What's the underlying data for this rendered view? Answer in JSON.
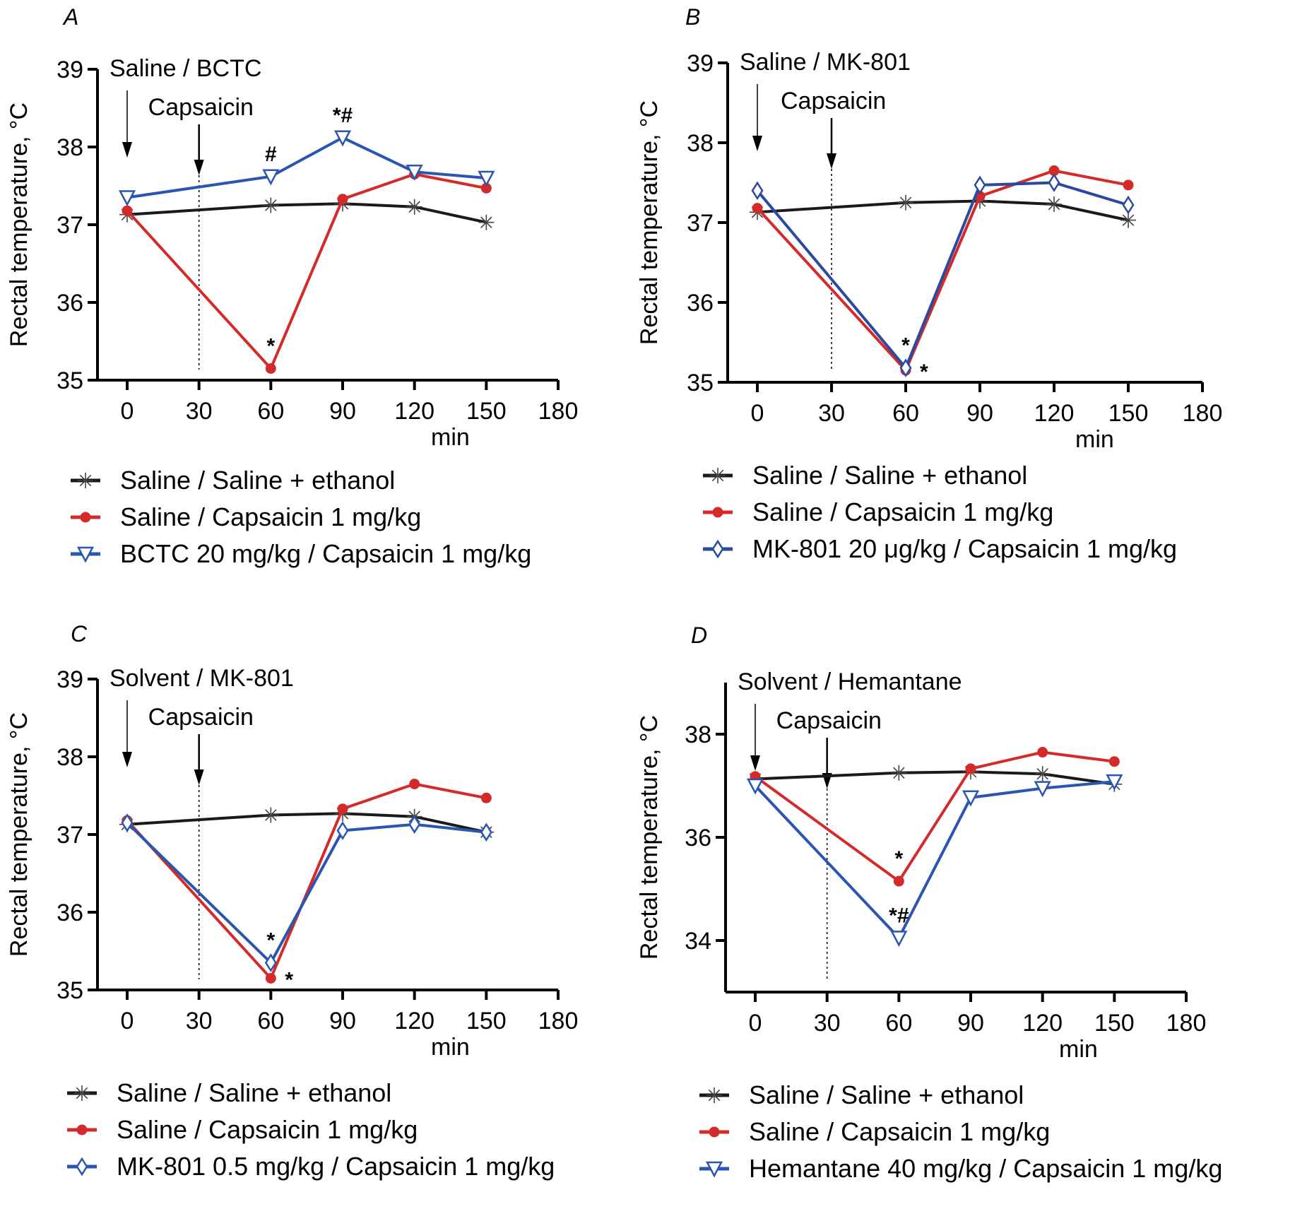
{
  "chart_data": [
    {
      "type": "line",
      "panel": "A",
      "x": [
        0,
        60,
        90,
        120,
        150
      ],
      "xticks": [
        "0",
        "30",
        "60",
        "90",
        "120",
        "150",
        "180"
      ],
      "xlim": [
        0,
        180
      ],
      "yticks": [
        "35",
        "36",
        "37",
        "38",
        "39"
      ],
      "ylim": [
        35,
        39
      ],
      "xlabel": "min",
      "ylabel": "Rectal temperature, °C",
      "annotations": {
        "first": "Saline / BCTC",
        "second": "Capsaicin"
      },
      "series": [
        {
          "name": "Saline / Saline + ethanol",
          "color": "#1a1a1a",
          "marker": "asterisk",
          "values": [
            37.13,
            37.25,
            37.27,
            37.23,
            37.03
          ]
        },
        {
          "name": "Saline / Capsaicin 1 mg/kg",
          "color": "#d42a2a",
          "marker": "circle",
          "values": [
            37.18,
            35.15,
            37.33,
            37.65,
            37.47
          ]
        },
        {
          "name": "BCTC 20 mg/kg / Capsaicin 1 mg/kg",
          "color": "#2a55b0",
          "marker": "triangle-down",
          "values": [
            37.35,
            37.62,
            38.12,
            37.68,
            37.6
          ]
        }
      ],
      "significance": [
        {
          "x": 60,
          "series": 1,
          "label": "*",
          "pos": "above"
        },
        {
          "x": 60,
          "series": 2,
          "label": "#",
          "pos": "above"
        },
        {
          "x": 90,
          "series": 2,
          "label": "*#",
          "pos": "above"
        }
      ]
    },
    {
      "type": "line",
      "panel": "B",
      "x": [
        0,
        60,
        90,
        120,
        150
      ],
      "xticks": [
        "0",
        "30",
        "60",
        "90",
        "120",
        "150",
        "180"
      ],
      "xlim": [
        0,
        180
      ],
      "yticks": [
        "35",
        "36",
        "37",
        "38",
        "39"
      ],
      "ylim": [
        35,
        39
      ],
      "xlabel": "min",
      "ylabel": "Rectal temperature, °C",
      "annotations": {
        "first": "Saline / MK-801",
        "second": "Capsaicin"
      },
      "series": [
        {
          "name": "Saline / Saline + ethanol",
          "color": "#1a1a1a",
          "marker": "asterisk",
          "values": [
            37.13,
            37.25,
            37.27,
            37.23,
            37.03
          ]
        },
        {
          "name": "Saline / Capsaicin 1 mg/kg",
          "color": "#d42a2a",
          "marker": "circle",
          "values": [
            37.18,
            35.15,
            37.33,
            37.65,
            37.47
          ]
        },
        {
          "name": "MK-801 20 μg/kg / Capsaicin 1 mg/kg",
          "color": "#2a4aa0",
          "marker": "diamond",
          "values": [
            37.4,
            35.18,
            37.47,
            37.5,
            37.22
          ]
        }
      ],
      "significance": [
        {
          "x": 60,
          "series": 2,
          "label": "*",
          "pos": "above"
        },
        {
          "x": 60,
          "series": 1,
          "label": "*",
          "pos": "right"
        }
      ]
    },
    {
      "type": "line",
      "panel": "C",
      "x": [
        0,
        60,
        90,
        120,
        150
      ],
      "xticks": [
        "0",
        "30",
        "60",
        "90",
        "120",
        "150",
        "180"
      ],
      "xlim": [
        0,
        180
      ],
      "yticks": [
        "35",
        "36",
        "37",
        "38",
        "39"
      ],
      "ylim": [
        35,
        39
      ],
      "xlabel": "min",
      "ylabel": "Rectal temperature, °C",
      "annotations": {
        "first": "Solvent / MK-801",
        "second": "Capsaicin"
      },
      "series": [
        {
          "name": "Saline / Saline + ethanol",
          "color": "#1a1a1a",
          "marker": "asterisk",
          "values": [
            37.13,
            37.25,
            37.27,
            37.23,
            37.03
          ]
        },
        {
          "name": "Saline / Capsaicin 1 mg/kg",
          "color": "#d42a2a",
          "marker": "circle",
          "values": [
            37.18,
            35.15,
            37.33,
            37.65,
            37.47
          ]
        },
        {
          "name": "MK-801 0.5 mg/kg / Capsaicin 1 mg/kg",
          "color": "#2a55b0",
          "marker": "diamond",
          "values": [
            37.15,
            35.35,
            37.05,
            37.13,
            37.03
          ]
        }
      ],
      "significance": [
        {
          "x": 60,
          "series": 2,
          "label": "*",
          "pos": "above"
        },
        {
          "x": 60,
          "series": 1,
          "label": "*",
          "pos": "right"
        }
      ]
    },
    {
      "type": "line",
      "panel": "D",
      "x": [
        0,
        60,
        90,
        120,
        150
      ],
      "xticks": [
        "0",
        "30",
        "60",
        "90",
        "120",
        "150",
        "180"
      ],
      "xlim": [
        0,
        180
      ],
      "yticks": [
        "34",
        "36",
        "38"
      ],
      "ylim": [
        33,
        39
      ],
      "xlabel": "min",
      "ylabel": "Rectal temperature, °C",
      "annotations": {
        "first": "Solvent / Hemantane",
        "second": "Capsaicin"
      },
      "series": [
        {
          "name": "Saline / Saline + ethanol",
          "color": "#1a1a1a",
          "marker": "asterisk",
          "values": [
            37.13,
            37.25,
            37.27,
            37.23,
            37.03
          ]
        },
        {
          "name": "Saline / Capsaicin 1 mg/kg",
          "color": "#d42a2a",
          "marker": "circle",
          "values": [
            37.18,
            35.15,
            37.33,
            37.65,
            37.47
          ]
        },
        {
          "name": "Hemantane 40 mg/kg / Capsaicin 1 mg/kg",
          "color": "#2a55b0",
          "marker": "triangle-down",
          "values": [
            37.0,
            34.05,
            36.77,
            36.95,
            37.08
          ]
        }
      ],
      "significance": [
        {
          "x": 60,
          "series": 1,
          "label": "*",
          "pos": "above"
        },
        {
          "x": 60,
          "series": 2,
          "label": "*#",
          "pos": "above"
        }
      ]
    }
  ]
}
